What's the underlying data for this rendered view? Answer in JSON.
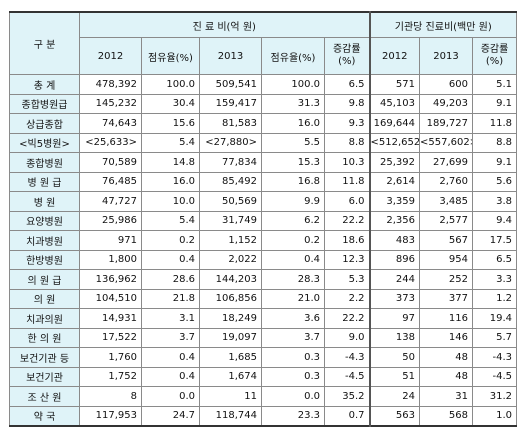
{
  "header": {
    "category": "구  분",
    "group1": "진 료 비(억 원)",
    "group2": "기관당 진료비(백만 원)",
    "col_2012": "2012",
    "col_share": "점유율(%)",
    "col_2013": "2013",
    "col_rate_line1": "증감률",
    "col_rate_line2": "(%)",
    "col2_2012": "2012",
    "col2_2013": "2013",
    "col2_rate_line1": "증감률",
    "col2_rate_line2": "(%)"
  },
  "rows": [
    {
      "label": "총      계",
      "v2012": "478,392",
      "s2012": "100.0",
      "v2013": "509,541",
      "s2013": "100.0",
      "rate": "6.5",
      "i2012": "571",
      "i2013": "600",
      "irate": "5.1"
    },
    {
      "label": "종합병원급",
      "v2012": "145,232",
      "s2012": "30.4",
      "v2013": "159,417",
      "s2013": "31.3",
      "rate": "9.8",
      "i2012": "45,103",
      "i2013": "49,203",
      "irate": "9.1"
    },
    {
      "label": "상급종합",
      "v2012": "74,643",
      "s2012": "15.6",
      "v2013": "81,583",
      "s2013": "16.0",
      "rate": "9.3",
      "i2012": "169,644",
      "i2013": "189,727",
      "irate": "11.8"
    },
    {
      "label": "<빅5병원>",
      "v2012": "<25,633>",
      "s2012": "5.4",
      "v2013": "<27,880>",
      "s2013": "5.5",
      "rate": "8.8",
      "i2012": "<512,652>",
      "i2013": "<557,602>",
      "irate": "8.8"
    },
    {
      "label": "종합병원",
      "v2012": "70,589",
      "s2012": "14.8",
      "v2013": "77,834",
      "s2013": "15.3",
      "rate": "10.3",
      "i2012": "25,392",
      "i2013": "27,699",
      "irate": "9.1"
    },
    {
      "label": "병 원 급",
      "v2012": "76,485",
      "s2012": "16.0",
      "v2013": "85,492",
      "s2013": "16.8",
      "rate": "11.8",
      "i2012": "2,614",
      "i2013": "2,760",
      "irate": "5.6"
    },
    {
      "label": "병      원",
      "v2012": "47,727",
      "s2012": "10.0",
      "v2013": "50,569",
      "s2013": "9.9",
      "rate": "6.0",
      "i2012": "3,359",
      "i2013": "3,485",
      "irate": "3.8"
    },
    {
      "label": "요양병원",
      "v2012": "25,986",
      "s2012": "5.4",
      "v2013": "31,749",
      "s2013": "6.2",
      "rate": "22.2",
      "i2012": "2,356",
      "i2013": "2,577",
      "irate": "9.4"
    },
    {
      "label": "치과병원",
      "v2012": "971",
      "s2012": "0.2",
      "v2013": "1,152",
      "s2013": "0.2",
      "rate": "18.6",
      "i2012": "483",
      "i2013": "567",
      "irate": "17.5"
    },
    {
      "label": "한방병원",
      "v2012": "1,800",
      "s2012": "0.4",
      "v2013": "2,022",
      "s2013": "0.4",
      "rate": "12.3",
      "i2012": "896",
      "i2013": "954",
      "irate": "6.5"
    },
    {
      "label": "의 원 급",
      "v2012": "136,962",
      "s2012": "28.6",
      "v2013": "144,203",
      "s2013": "28.3",
      "rate": "5.3",
      "i2012": "244",
      "i2013": "252",
      "irate": "3.3"
    },
    {
      "label": "의      원",
      "v2012": "104,510",
      "s2012": "21.8",
      "v2013": "106,856",
      "s2013": "21.0",
      "rate": "2.2",
      "i2012": "373",
      "i2013": "377",
      "irate": "1.2"
    },
    {
      "label": "치과의원",
      "v2012": "14,931",
      "s2012": "3.1",
      "v2013": "18,249",
      "s2013": "3.6",
      "rate": "22.2",
      "i2012": "97",
      "i2013": "116",
      "irate": "19.4"
    },
    {
      "label": "한 의 원",
      "v2012": "17,522",
      "s2012": "3.7",
      "v2013": "19,097",
      "s2013": "3.7",
      "rate": "9.0",
      "i2012": "138",
      "i2013": "146",
      "irate": "5.7"
    },
    {
      "label": "보건기관 등",
      "v2012": "1,760",
      "s2012": "0.4",
      "v2013": "1,685",
      "s2013": "0.3",
      "rate": "-4.3",
      "i2012": "50",
      "i2013": "48",
      "irate": "-4.3"
    },
    {
      "label": "보건기관",
      "v2012": "1,752",
      "s2012": "0.4",
      "v2013": "1,674",
      "s2013": "0.3",
      "rate": "-4.5",
      "i2012": "51",
      "i2013": "48",
      "irate": "-4.5"
    },
    {
      "label": "조 산 원",
      "v2012": "8",
      "s2012": "0.0",
      "v2013": "11",
      "s2013": "0.0",
      "rate": "35.2",
      "i2012": "24",
      "i2013": "31",
      "irate": "31.2"
    },
    {
      "label": "약      국",
      "v2012": "117,953",
      "s2012": "24.7",
      "v2013": "118,744",
      "s2013": "23.3",
      "rate": "0.7",
      "i2012": "563",
      "i2013": "568",
      "irate": "1.0"
    }
  ]
}
